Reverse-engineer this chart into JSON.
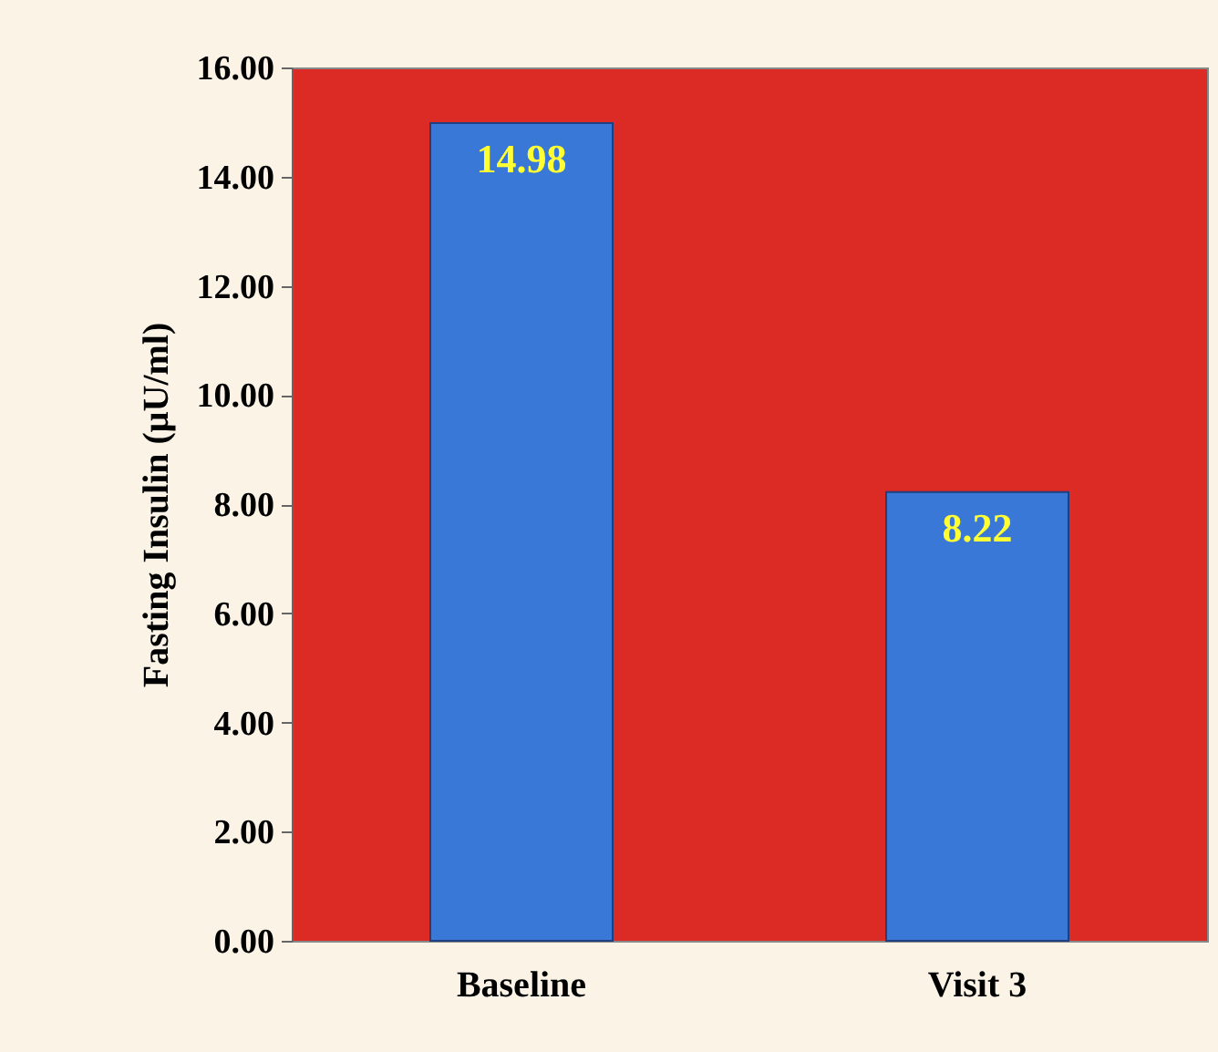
{
  "chart_data": {
    "type": "bar",
    "ylabel": "Fasting Insulin (μU/ml)",
    "categories": [
      "Baseline",
      "Visit 3"
    ],
    "values": [
      14.98,
      8.22
    ],
    "color": "#3a78d8",
    "ylim": [
      0,
      16
    ],
    "yticks": [
      {
        "value": 0,
        "label": "0.00"
      },
      {
        "value": 2,
        "label": "2.00"
      },
      {
        "value": 4,
        "label": "4.00"
      },
      {
        "value": 6,
        "label": "6.00"
      },
      {
        "value": 8,
        "label": "8.00"
      },
      {
        "value": 10,
        "label": "10.00"
      },
      {
        "value": 12,
        "label": "12.00"
      },
      {
        "value": 14,
        "label": "14.00"
      },
      {
        "value": 16,
        "label": "16.00"
      }
    ],
    "data_labels": true,
    "grid": false
  }
}
